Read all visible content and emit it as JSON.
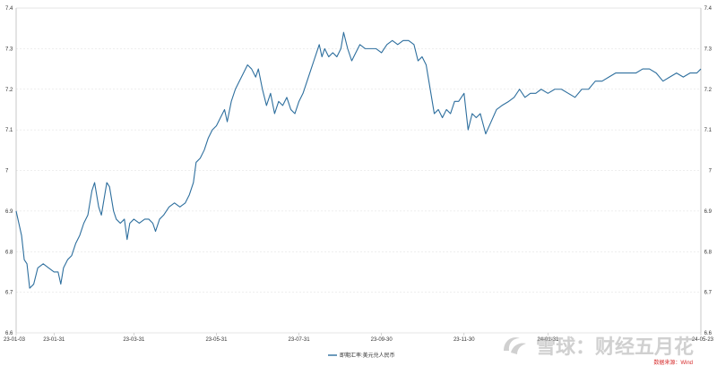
{
  "chart_data": {
    "type": "line",
    "xlabel": "",
    "ylabel": "",
    "x_start": "2023-01-03",
    "x_end": "2024-05-23",
    "ylim": [
      6.6,
      7.4
    ],
    "y_ticks": [
      6.6,
      6.7,
      6.8,
      6.9,
      7.0,
      7.1,
      7.2,
      7.3,
      7.4
    ],
    "y_tick_labels": [
      "6.6",
      "6.7",
      "6.8",
      "6.9",
      "7",
      "7.1",
      "7.2",
      "7.3",
      "7.4"
    ],
    "x_ticks": [
      {
        "date": "2023-01-03",
        "label": "23-01-03"
      },
      {
        "date": "2023-01-31",
        "label": "23-01-31"
      },
      {
        "date": "2023-03-31",
        "label": "23-03-31"
      },
      {
        "date": "2023-05-31",
        "label": "23-05-31"
      },
      {
        "date": "2023-07-31",
        "label": "23-07-31"
      },
      {
        "date": "2023-09-30",
        "label": "23-09-30"
      },
      {
        "date": "2023-11-30",
        "label": "23-11-30"
      },
      {
        "date": "2024-01-31",
        "label": "24-01-31"
      },
      {
        "date": "2024-05-23",
        "label": "24-05-23"
      }
    ],
    "grid": true,
    "legend_position": "bottom",
    "series": [
      {
        "name": "即期汇率:美元兑人民币",
        "color": "#2e6f9e",
        "points": [
          [
            "2023-01-03",
            6.9
          ],
          [
            "2023-01-05",
            6.87
          ],
          [
            "2023-01-07",
            6.84
          ],
          [
            "2023-01-09",
            6.78
          ],
          [
            "2023-01-11",
            6.77
          ],
          [
            "2023-01-13",
            6.71
          ],
          [
            "2023-01-16",
            6.72
          ],
          [
            "2023-01-19",
            6.76
          ],
          [
            "2023-01-23",
            6.77
          ],
          [
            "2023-01-27",
            6.76
          ],
          [
            "2023-01-31",
            6.75
          ],
          [
            "2023-02-03",
            6.75
          ],
          [
            "2023-02-05",
            6.72
          ],
          [
            "2023-02-07",
            6.76
          ],
          [
            "2023-02-10",
            6.78
          ],
          [
            "2023-02-13",
            6.79
          ],
          [
            "2023-02-16",
            6.82
          ],
          [
            "2023-02-19",
            6.84
          ],
          [
            "2023-02-22",
            6.87
          ],
          [
            "2023-02-25",
            6.89
          ],
          [
            "2023-02-28",
            6.95
          ],
          [
            "2023-03-02",
            6.97
          ],
          [
            "2023-03-05",
            6.91
          ],
          [
            "2023-03-07",
            6.89
          ],
          [
            "2023-03-09",
            6.93
          ],
          [
            "2023-03-11",
            6.97
          ],
          [
            "2023-03-13",
            6.96
          ],
          [
            "2023-03-16",
            6.9
          ],
          [
            "2023-03-18",
            6.88
          ],
          [
            "2023-03-21",
            6.87
          ],
          [
            "2023-03-24",
            6.88
          ],
          [
            "2023-03-26",
            6.83
          ],
          [
            "2023-03-28",
            6.87
          ],
          [
            "2023-03-31",
            6.88
          ],
          [
            "2023-04-04",
            6.87
          ],
          [
            "2023-04-08",
            6.88
          ],
          [
            "2023-04-11",
            6.88
          ],
          [
            "2023-04-14",
            6.87
          ],
          [
            "2023-04-16",
            6.85
          ],
          [
            "2023-04-19",
            6.88
          ],
          [
            "2023-04-22",
            6.89
          ],
          [
            "2023-04-26",
            6.91
          ],
          [
            "2023-04-30",
            6.92
          ],
          [
            "2023-05-04",
            6.91
          ],
          [
            "2023-05-08",
            6.92
          ],
          [
            "2023-05-11",
            6.94
          ],
          [
            "2023-05-14",
            6.97
          ],
          [
            "2023-05-16",
            7.02
          ],
          [
            "2023-05-19",
            7.03
          ],
          [
            "2023-05-22",
            7.05
          ],
          [
            "2023-05-25",
            7.08
          ],
          [
            "2023-05-28",
            7.1
          ],
          [
            "2023-05-31",
            7.11
          ],
          [
            "2023-06-03",
            7.13
          ],
          [
            "2023-06-06",
            7.15
          ],
          [
            "2023-06-08",
            7.12
          ],
          [
            "2023-06-11",
            7.17
          ],
          [
            "2023-06-14",
            7.2
          ],
          [
            "2023-06-17",
            7.22
          ],
          [
            "2023-06-20",
            7.24
          ],
          [
            "2023-06-23",
            7.26
          ],
          [
            "2023-06-26",
            7.25
          ],
          [
            "2023-06-29",
            7.23
          ],
          [
            "2023-07-01",
            7.25
          ],
          [
            "2023-07-04",
            7.2
          ],
          [
            "2023-07-07",
            7.16
          ],
          [
            "2023-07-10",
            7.19
          ],
          [
            "2023-07-13",
            7.14
          ],
          [
            "2023-07-16",
            7.17
          ],
          [
            "2023-07-19",
            7.16
          ],
          [
            "2023-07-22",
            7.18
          ],
          [
            "2023-07-25",
            7.15
          ],
          [
            "2023-07-28",
            7.14
          ],
          [
            "2023-07-31",
            7.17
          ],
          [
            "2023-08-03",
            7.19
          ],
          [
            "2023-08-06",
            7.22
          ],
          [
            "2023-08-09",
            7.25
          ],
          [
            "2023-08-11",
            7.27
          ],
          [
            "2023-08-13",
            7.29
          ],
          [
            "2023-08-15",
            7.31
          ],
          [
            "2023-08-17",
            7.28
          ],
          [
            "2023-08-19",
            7.3
          ],
          [
            "2023-08-22",
            7.28
          ],
          [
            "2023-08-25",
            7.29
          ],
          [
            "2023-08-28",
            7.28
          ],
          [
            "2023-08-31",
            7.3
          ],
          [
            "2023-09-02",
            7.34
          ],
          [
            "2023-09-05",
            7.3
          ],
          [
            "2023-09-08",
            7.27
          ],
          [
            "2023-09-11",
            7.29
          ],
          [
            "2023-09-14",
            7.31
          ],
          [
            "2023-09-18",
            7.3
          ],
          [
            "2023-09-22",
            7.3
          ],
          [
            "2023-09-26",
            7.3
          ],
          [
            "2023-09-30",
            7.29
          ],
          [
            "2023-10-04",
            7.31
          ],
          [
            "2023-10-08",
            7.32
          ],
          [
            "2023-10-12",
            7.31
          ],
          [
            "2023-10-16",
            7.32
          ],
          [
            "2023-10-20",
            7.32
          ],
          [
            "2023-10-24",
            7.31
          ],
          [
            "2023-10-27",
            7.27
          ],
          [
            "2023-10-30",
            7.28
          ],
          [
            "2023-11-02",
            7.26
          ],
          [
            "2023-11-05",
            7.2
          ],
          [
            "2023-11-08",
            7.14
          ],
          [
            "2023-11-11",
            7.15
          ],
          [
            "2023-11-14",
            7.13
          ],
          [
            "2023-11-17",
            7.15
          ],
          [
            "2023-11-20",
            7.14
          ],
          [
            "2023-11-23",
            7.17
          ],
          [
            "2023-11-26",
            7.17
          ],
          [
            "2023-11-30",
            7.19
          ],
          [
            "2023-12-03",
            7.1
          ],
          [
            "2023-12-06",
            7.14
          ],
          [
            "2023-12-09",
            7.13
          ],
          [
            "2023-12-12",
            7.14
          ],
          [
            "2023-12-16",
            7.09
          ],
          [
            "2023-12-20",
            7.12
          ],
          [
            "2023-12-24",
            7.15
          ],
          [
            "2023-12-28",
            7.16
          ],
          [
            "2024-01-02",
            7.17
          ],
          [
            "2024-01-06",
            7.18
          ],
          [
            "2024-01-10",
            7.2
          ],
          [
            "2024-01-14",
            7.18
          ],
          [
            "2024-01-18",
            7.19
          ],
          [
            "2024-01-22",
            7.19
          ],
          [
            "2024-01-26",
            7.2
          ],
          [
            "2024-01-31",
            7.19
          ],
          [
            "2024-02-05",
            7.2
          ],
          [
            "2024-02-10",
            7.2
          ],
          [
            "2024-02-15",
            7.19
          ],
          [
            "2024-02-20",
            7.18
          ],
          [
            "2024-02-25",
            7.2
          ],
          [
            "2024-03-01",
            7.2
          ],
          [
            "2024-03-06",
            7.22
          ],
          [
            "2024-03-11",
            7.22
          ],
          [
            "2024-03-16",
            7.23
          ],
          [
            "2024-03-21",
            7.24
          ],
          [
            "2024-03-26",
            7.24
          ],
          [
            "2024-03-31",
            7.24
          ],
          [
            "2024-04-05",
            7.24
          ],
          [
            "2024-04-10",
            7.25
          ],
          [
            "2024-04-15",
            7.25
          ],
          [
            "2024-04-20",
            7.24
          ],
          [
            "2024-04-25",
            7.22
          ],
          [
            "2024-04-30",
            7.23
          ],
          [
            "2024-05-05",
            7.24
          ],
          [
            "2024-05-10",
            7.23
          ],
          [
            "2024-05-15",
            7.24
          ],
          [
            "2024-05-20",
            7.24
          ],
          [
            "2024-05-23",
            7.25
          ]
        ]
      }
    ]
  },
  "source_text": "数据来源：Wind",
  "watermark_text": "雪球：财经五月花"
}
